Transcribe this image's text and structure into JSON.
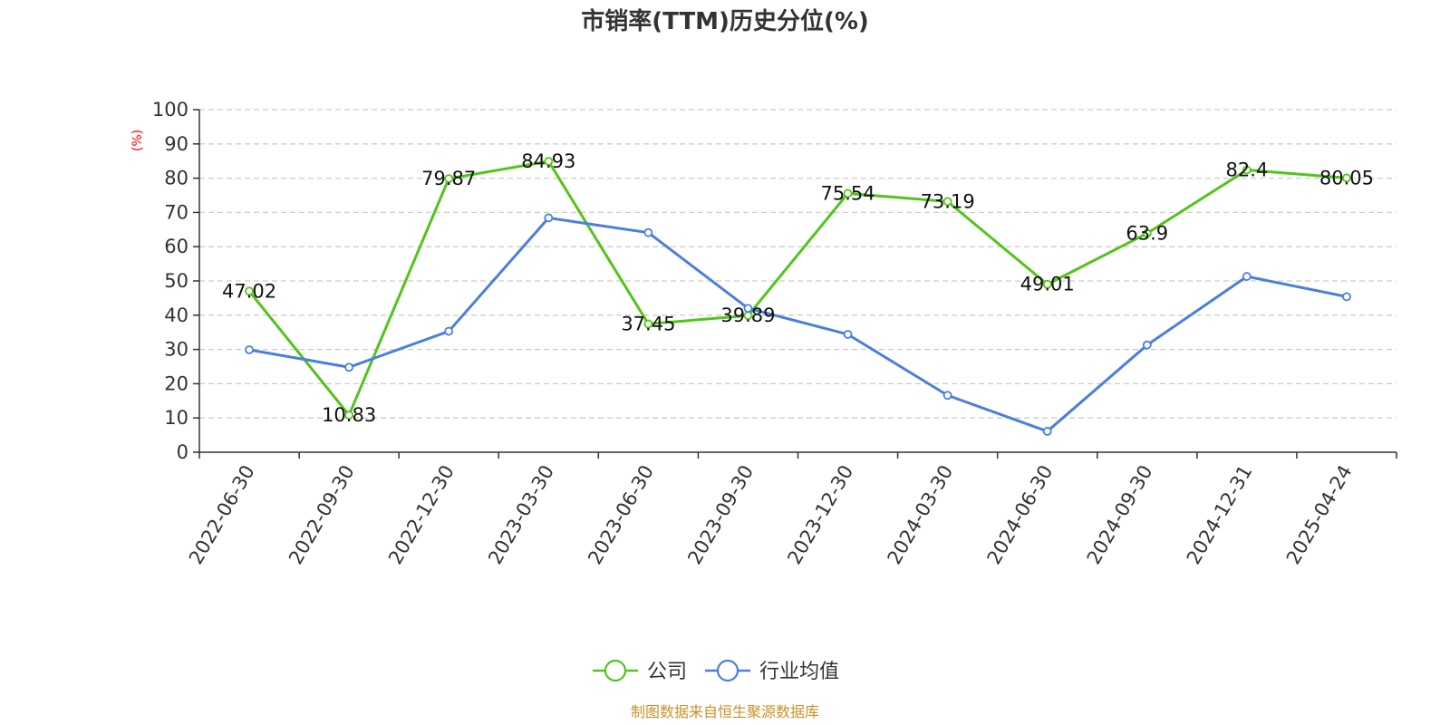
{
  "chart_data": {
    "type": "line",
    "title": "市销率(TTM)历史分位(%)",
    "ylabel": "(%)",
    "xlabel": "",
    "ylim": [
      0,
      100
    ],
    "yticks": [
      0,
      10,
      20,
      30,
      40,
      50,
      60,
      70,
      80,
      90,
      100
    ],
    "grid": true,
    "legend_position": "bottom-center",
    "categories": [
      "2022-06-30",
      "2022-09-30",
      "2022-12-30",
      "2023-03-30",
      "2023-06-30",
      "2023-09-30",
      "2023-12-30",
      "2024-03-30",
      "2024-06-30",
      "2024-09-30",
      "2024-12-31",
      "2025-04-24"
    ],
    "series": [
      {
        "name": "公司",
        "color": "#52c41a",
        "show_labels": true,
        "values": [
          47.02,
          10.83,
          79.87,
          84.93,
          37.45,
          39.89,
          75.54,
          73.19,
          49.01,
          63.9,
          82.4,
          80.05
        ]
      },
      {
        "name": "行业均值",
        "color": "#4a7fdc",
        "show_labels": false,
        "values": [
          29.9,
          24.8,
          35.3,
          68.4,
          64.1,
          42.0,
          34.4,
          16.6,
          6.1,
          31.3,
          51.3,
          45.4
        ]
      }
    ],
    "source": "制图数据来自恒生聚源数据库"
  },
  "colors": {
    "unit_label": "#ff0000",
    "source": "#c8922a",
    "grid": "#cccccc",
    "axis": "#333333"
  }
}
